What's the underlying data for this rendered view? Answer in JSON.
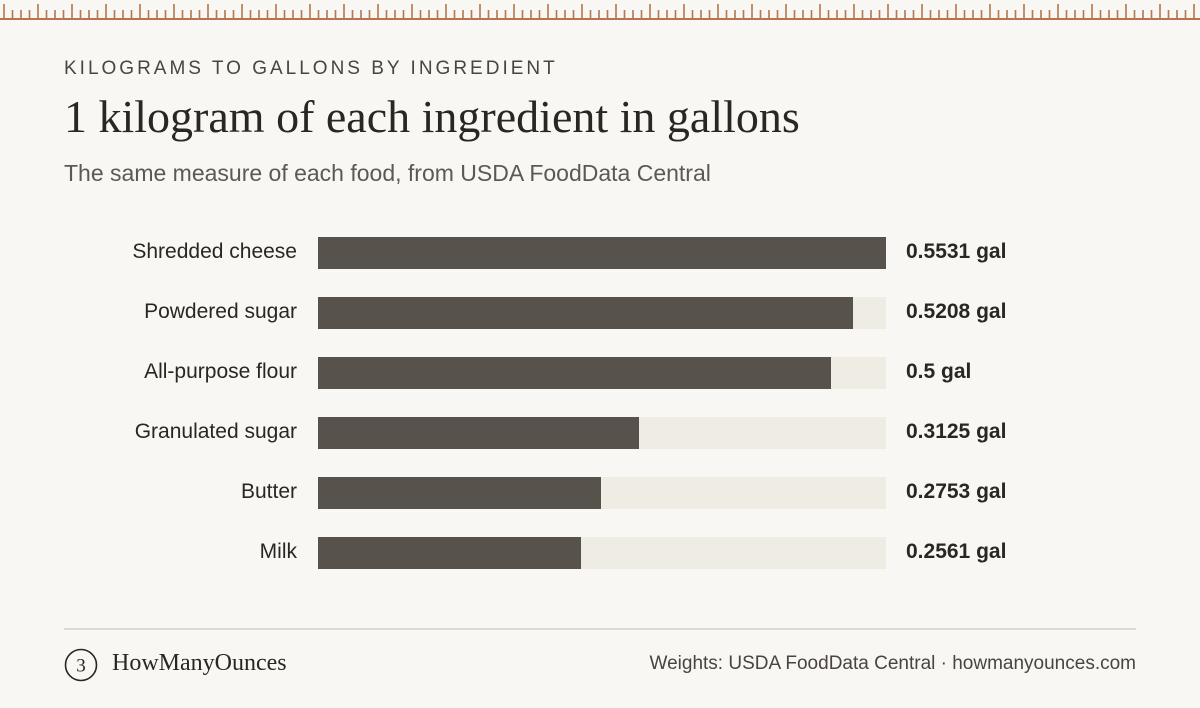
{
  "header": {
    "eyebrow": "KILOGRAMS TO GALLONS BY INGREDIENT",
    "title": "1 kilogram of each ingredient in gallons",
    "subtitle": "The same measure of each food, from USDA FoodData Central"
  },
  "chart_data": {
    "type": "bar",
    "orientation": "horizontal",
    "categories": [
      "Shredded cheese",
      "Powdered sugar",
      "All-purpose flour",
      "Granulated sugar",
      "Butter",
      "Milk"
    ],
    "values": [
      0.5531,
      0.5208,
      0.5,
      0.3125,
      0.2753,
      0.2561
    ],
    "value_labels": [
      "0.5531 gal",
      "0.5208 gal",
      "0.5 gal",
      "0.3125 gal",
      "0.2753 gal",
      "0.2561 gal"
    ],
    "xlim": [
      0,
      0.5531
    ],
    "grid": false,
    "colors": {
      "bar": "#58524c",
      "track": "#efece4"
    }
  },
  "footer": {
    "brand": "HowManyOunces",
    "logo_glyph": "3",
    "note": "Weights: USDA FoodData Central · howmanyounces.com"
  },
  "colors": {
    "ruler": "#b8744e",
    "background": "#f8f7f3",
    "text": "#2a2623"
  }
}
